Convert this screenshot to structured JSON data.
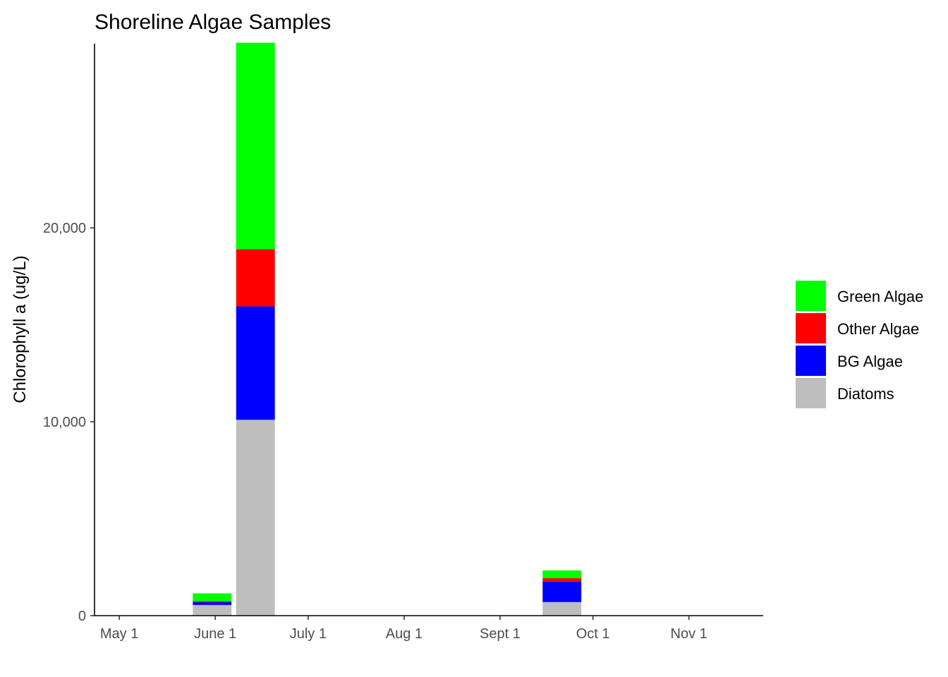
{
  "chart_data": {
    "type": "bar",
    "stacked": true,
    "title": "Shoreline Algae Samples",
    "xlabel": "",
    "ylabel": "Chlorophyll a (ug/L)",
    "ylim": [
      0,
      29500
    ],
    "y_ticks": [
      {
        "value": 0,
        "label": "0"
      },
      {
        "value": 10000,
        "label": "10,000"
      },
      {
        "value": 20000,
        "label": "20,000"
      }
    ],
    "xlim": [
      "2021-04-23",
      "2021-11-25"
    ],
    "x_ticks": [
      {
        "date": "2021-05-01",
        "label": "May 1"
      },
      {
        "date": "2021-06-01",
        "label": "June 1"
      },
      {
        "date": "2021-07-01",
        "label": "July 1"
      },
      {
        "date": "2021-08-01",
        "label": "Aug 1"
      },
      {
        "date": "2021-09-01",
        "label": "Sept 1"
      },
      {
        "date": "2021-10-01",
        "label": "Oct 1"
      },
      {
        "date": "2021-11-01",
        "label": "Nov 1"
      }
    ],
    "bar_width_days": 12.5,
    "x": [
      "2021-05-31",
      "2021-06-14",
      "2021-09-21"
    ],
    "series": [
      {
        "name": "Diatoms",
        "color": "#bebebe",
        "values": [
          550,
          10100,
          700
        ]
      },
      {
        "name": "BG Algae",
        "color": "#0000ff",
        "values": [
          150,
          5850,
          1050
        ]
      },
      {
        "name": "Other Algae",
        "color": "#ff0000",
        "values": [
          50,
          2950,
          180
        ]
      },
      {
        "name": "Green Algae",
        "color": "#00ff00",
        "values": [
          400,
          10650,
          400
        ]
      }
    ],
    "legend_order": [
      "Green Algae",
      "Other Algae",
      "BG Algae",
      "Diatoms"
    ],
    "legend_position": "right",
    "grid": false
  }
}
